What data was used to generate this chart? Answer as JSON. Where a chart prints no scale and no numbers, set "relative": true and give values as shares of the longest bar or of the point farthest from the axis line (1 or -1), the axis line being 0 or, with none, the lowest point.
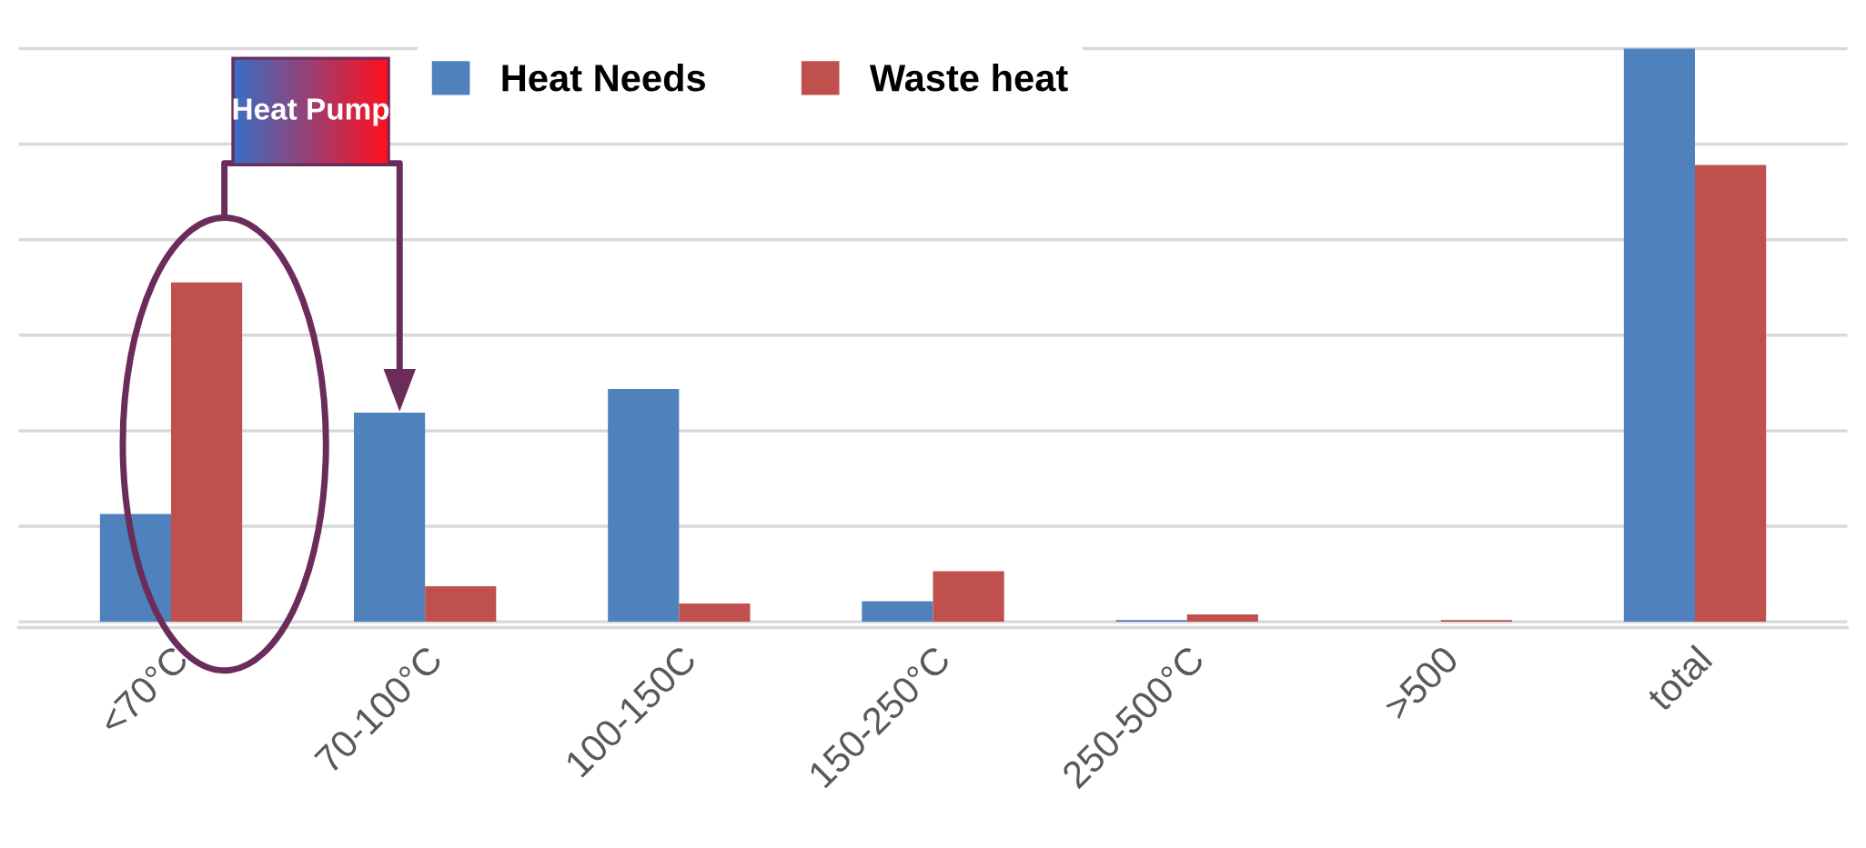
{
  "chart_data": {
    "type": "bar",
    "relative": true,
    "grid": "y",
    "legend": "top",
    "categories": [
      "<70°C",
      "70-100°C",
      "100-150C",
      "150-250°C",
      "250-500°C",
      ">500",
      "total"
    ],
    "series": [
      {
        "name": "Heat Needs",
        "color": "#4f81bd",
        "values": [
          0.188,
          0.365,
          0.406,
          0.036,
          0.003,
          0,
          1
        ]
      },
      {
        "name": "Waste heat",
        "color": "#c0504d",
        "values": [
          0.592,
          0.062,
          0.032,
          0.088,
          0.013,
          0.003,
          0.797
        ]
      }
    ],
    "annotations": [
      "Heat Pump"
    ]
  }
}
